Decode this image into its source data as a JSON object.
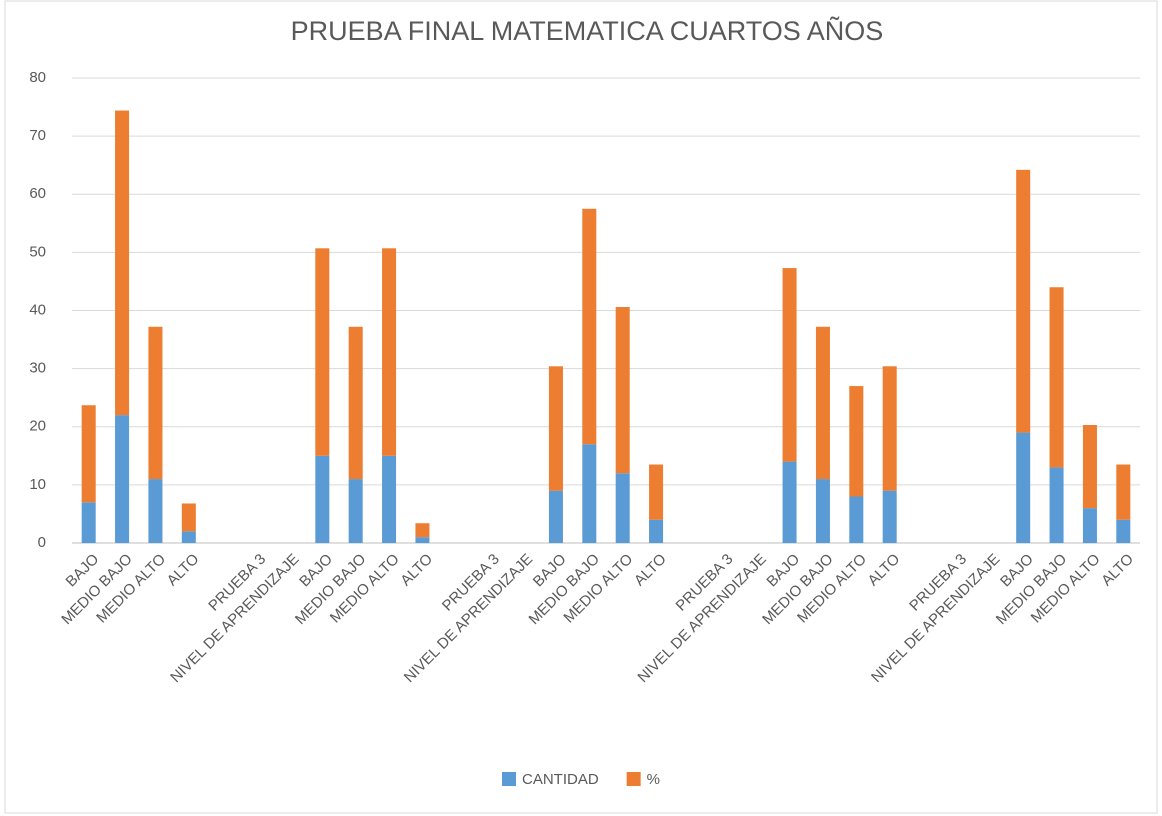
{
  "chart_data": {
    "type": "bar",
    "stacked": true,
    "title": "PRUEBA FINAL MATEMATICA CUARTOS AÑOS",
    "categories": [
      "BAJO",
      "MEDIO BAJO",
      "MEDIO ALTO",
      "ALTO",
      null,
      "PRUEBA 3",
      "NIVEL DE APRENDIZAJE",
      "BAJO",
      "MEDIO BAJO",
      "MEDIO ALTO",
      "ALTO",
      null,
      "PRUEBA 3",
      "NIVEL DE APRENDIZAJE",
      "BAJO",
      "MEDIO BAJO",
      "MEDIO ALTO",
      "ALTO",
      null,
      "PRUEBA 3",
      "NIVEL DE APRENDIZAJE",
      "BAJO",
      "MEDIO BAJO",
      "MEDIO ALTO",
      "ALTO",
      null,
      "PRUEBA 3",
      "NIVEL DE APRENDIZAJE",
      "BAJO",
      "MEDIO BAJO",
      "MEDIO ALTO",
      "ALTO"
    ],
    "series": [
      {
        "name": "CANTIDAD",
        "color": "#5b9bd5",
        "values": [
          7,
          22,
          11,
          2,
          null,
          null,
          null,
          15,
          11,
          15,
          1,
          null,
          null,
          null,
          9,
          17,
          12,
          4,
          null,
          null,
          null,
          14,
          11,
          8,
          9,
          null,
          null,
          null,
          19,
          13,
          6,
          4
        ]
      },
      {
        "name": "%",
        "color": "#ed7d31",
        "values": [
          16.7,
          52.4,
          26.2,
          4.8,
          null,
          null,
          null,
          35.7,
          26.2,
          35.7,
          2.4,
          null,
          null,
          null,
          21.4,
          40.5,
          28.6,
          9.5,
          null,
          null,
          null,
          33.3,
          26.2,
          19.0,
          21.4,
          null,
          null,
          null,
          45.2,
          31.0,
          14.3,
          9.5
        ]
      }
    ],
    "ylim": [
      0,
      80
    ],
    "yticks": [
      0,
      10,
      20,
      30,
      40,
      50,
      60,
      70,
      80
    ],
    "grid": true,
    "legend": "bottom"
  }
}
